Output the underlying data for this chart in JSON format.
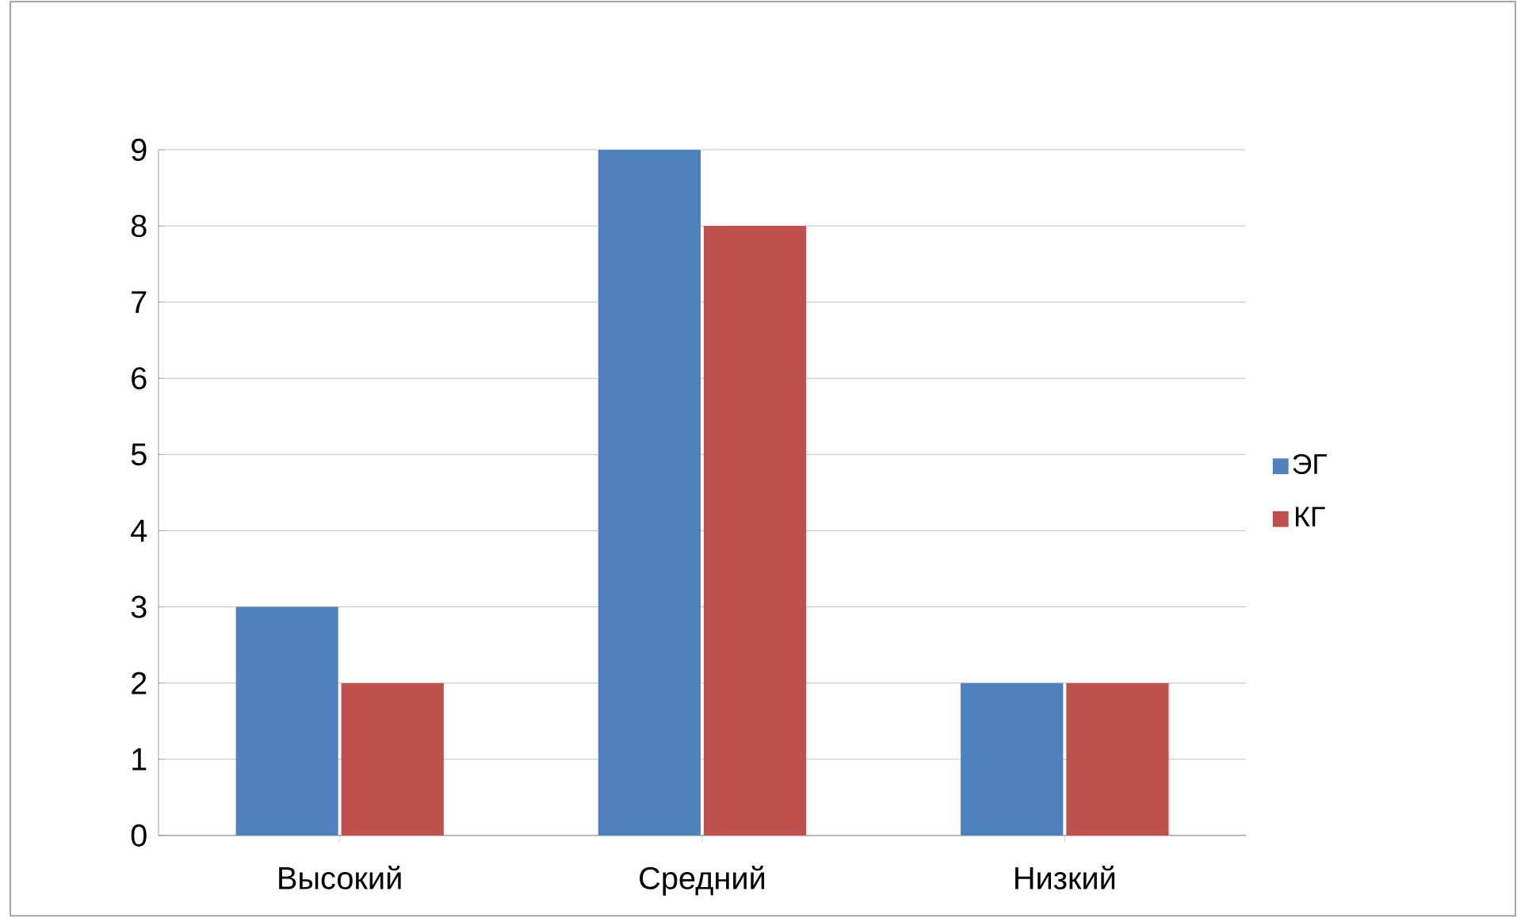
{
  "chart_data": {
    "type": "bar",
    "categories": [
      "Высокий",
      "Средний",
      "Низкий"
    ],
    "series": [
      {
        "name": "ЭГ",
        "color": "#4f81bd",
        "values": [
          3,
          9,
          2
        ]
      },
      {
        "name": "КГ",
        "color": "#c0504d",
        "values": [
          2,
          8,
          2
        ]
      }
    ],
    "ylim": [
      0,
      9
    ],
    "yticks": [
      0,
      1,
      2,
      3,
      4,
      5,
      6,
      7,
      8,
      9
    ],
    "grid": "y",
    "legend": "right"
  }
}
